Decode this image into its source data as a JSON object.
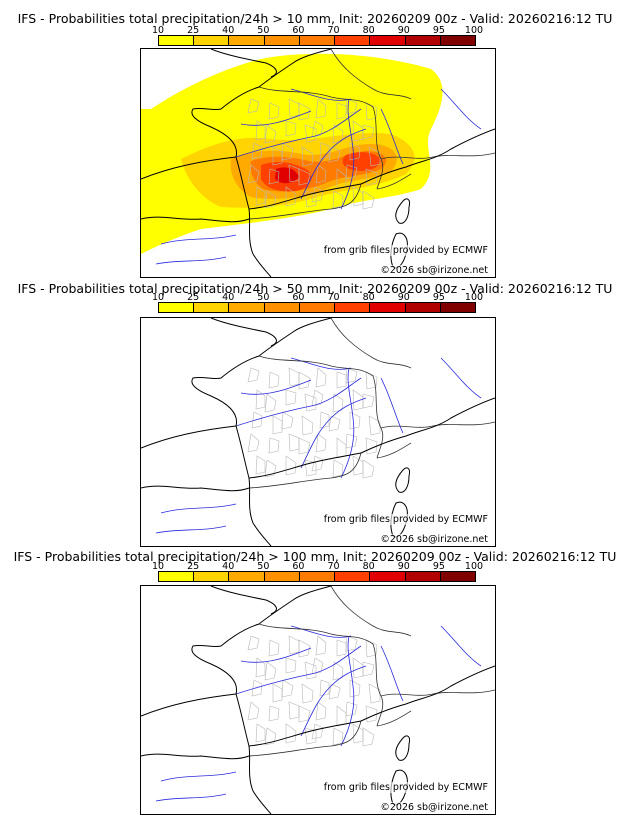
{
  "legend": {
    "ticks": [
      "10",
      "25",
      "40",
      "50",
      "60",
      "70",
      "80",
      "90",
      "95",
      "100"
    ],
    "colors": [
      "#ffff00",
      "#ffd400",
      "#ffaa00",
      "#ff9000",
      "#ff7a00",
      "#ff4000",
      "#e00000",
      "#b00000",
      "#800000",
      "#500000"
    ]
  },
  "panels": [
    {
      "title": "IFS - Probabilities total precipitation/24h > 10 mm, Init: 20260209 00z - Valid: 20260216:12 TU",
      "credit_source": "from grib files provided by ECMWF",
      "credit_copyright": "©2026 sb@irizone.net",
      "has_precip": true
    },
    {
      "title": "IFS - Probabilities total precipitation/24h > 50 mm, Init: 20260209 00z - Valid: 20260216:12 TU",
      "credit_source": "from grib files provided by ECMWF",
      "credit_copyright": "©2026 sb@irizone.net",
      "has_precip": false
    },
    {
      "title": "IFS - Probabilities total precipitation/24h > 100 mm, Init: 20260209 00z - Valid: 20260216:12 TU",
      "credit_source": "from grib files provided by ECMWF",
      "credit_copyright": "©2026 sb@irizone.net",
      "has_precip": false
    }
  ]
}
